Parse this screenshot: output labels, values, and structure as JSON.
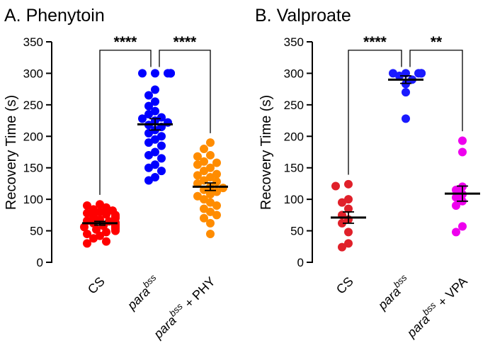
{
  "chart_data": [
    {
      "type": "scatter",
      "panel_title": "A. Phenytoin",
      "ylabel": "Recovery Time (s)",
      "xlabel": "",
      "ylim": [
        0,
        350
      ],
      "yticks": [
        "0",
        "50",
        "100",
        "150",
        "200",
        "250",
        "300",
        "350"
      ],
      "groups": [
        {
          "label_main": "CS",
          "label_sup": "",
          "label_suffix": "",
          "color": "#ff0000",
          "mean": 62,
          "sem": 3,
          "values": [
            92,
            90,
            87,
            84,
            82,
            80,
            78,
            76,
            75,
            73,
            72,
            70,
            68,
            66,
            65,
            63,
            62,
            60,
            59,
            58,
            57,
            56,
            55,
            55,
            53,
            52,
            50,
            48,
            45,
            42,
            38,
            33,
            30
          ]
        },
        {
          "label_main": "para",
          "label_sup": "bss",
          "label_suffix": "",
          "color": "#0000ff",
          "mean": 219,
          "sem": 9,
          "values": [
            300,
            300,
            300,
            300,
            300,
            300,
            274,
            265,
            255,
            248,
            240,
            235,
            230,
            228,
            225,
            222,
            218,
            215,
            210,
            205,
            200,
            195,
            190,
            185,
            175,
            170,
            165,
            155,
            150,
            145,
            135,
            130
          ]
        },
        {
          "label_main": "para",
          "label_sup": "bss",
          "label_suffix": " + PHY",
          "color": "#ff8c00",
          "mean": 120,
          "sem": 6,
          "values": [
            190,
            180,
            170,
            168,
            160,
            158,
            155,
            150,
            145,
            140,
            138,
            135,
            130,
            128,
            125,
            120,
            118,
            115,
            112,
            108,
            105,
            100,
            95,
            90,
            85,
            80,
            75,
            70,
            62,
            45
          ]
        }
      ],
      "significance": [
        {
          "from": 0,
          "to": 1,
          "label": "****"
        },
        {
          "from": 1,
          "to": 2,
          "label": "****"
        }
      ]
    },
    {
      "type": "scatter",
      "panel_title": "B. Valproate",
      "ylabel": "Recovery Time (s)",
      "xlabel": "",
      "ylim": [
        0,
        350
      ],
      "yticks": [
        "0",
        "50",
        "100",
        "150",
        "200",
        "250",
        "300",
        "350"
      ],
      "groups": [
        {
          "label_main": "CS",
          "label_sup": "",
          "label_suffix": "",
          "color": "#e0202a",
          "mean": 71,
          "sem": 9,
          "values": [
            124,
            121,
            100,
            95,
            85,
            75,
            68,
            62,
            48,
            30,
            24
          ]
        },
        {
          "label_main": "para",
          "label_sup": "bss",
          "label_suffix": "",
          "color": "#1a1aff",
          "mean": 290,
          "sem": 6,
          "values": [
            300,
            300,
            300,
            300,
            300,
            300,
            296,
            290,
            283,
            270,
            228
          ]
        },
        {
          "label_main": "para",
          "label_sup": "bss",
          "label_suffix": " + VPA",
          "color": "#ee00ee",
          "mean": 109,
          "sem": 12,
          "values": [
            193,
            175,
            120,
            115,
            108,
            103,
            97,
            90,
            57,
            48
          ]
        }
      ],
      "significance": [
        {
          "from": 0,
          "to": 1,
          "label": "****"
        },
        {
          "from": 1,
          "to": 2,
          "label": "**"
        }
      ]
    }
  ]
}
